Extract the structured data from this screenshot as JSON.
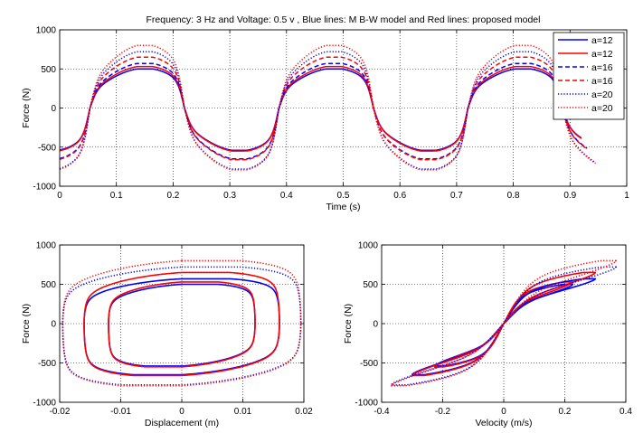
{
  "chart_data": [
    {
      "type": "line",
      "title": "Frequency: 3 Hz and Voltage: 0.5 v , Blue lines: M B-W model and Red lines: proposed model",
      "xlabel": "Time (s)",
      "ylabel": "Force (N)",
      "xlim": [
        0,
        1
      ],
      "ylim": [
        -1000,
        1000
      ],
      "xticks": [
        0,
        0.1,
        0.2,
        0.3,
        0.4,
        0.5,
        0.6,
        0.7,
        0.8,
        0.9,
        1
      ],
      "xtick_labels": [
        "0",
        "0.1",
        "0.2",
        "0.3",
        "0.4",
        "0.5",
        "0.6",
        "0.7",
        "0.8",
        "0.9",
        "1"
      ],
      "yticks": [
        -1000,
        -500,
        0,
        500,
        1000
      ],
      "ytick_labels": [
        "-1000",
        "-500",
        "0",
        "500",
        "1000"
      ],
      "grid": true,
      "legend_position": "top-right",
      "frequency_hz": 3,
      "series": [
        {
          "name": "a=12",
          "color": "#0000ff",
          "style": "solid",
          "peak_pos": 500,
          "peak_neg": -540,
          "x_end": 0.92
        },
        {
          "name": "a=12",
          "color": "#ff0000",
          "style": "solid",
          "peak_pos": 530,
          "peak_neg": -550,
          "x_end": 0.92
        },
        {
          "name": "a=16",
          "color": "#0000ff",
          "style": "dashed",
          "peak_pos": 570,
          "peak_neg": -650,
          "x_end": 0.93
        },
        {
          "name": "a=16",
          "color": "#ff0000",
          "style": "dashed",
          "peak_pos": 650,
          "peak_neg": -660,
          "x_end": 0.93
        },
        {
          "name": "a=20",
          "color": "#0000ff",
          "style": "dotted",
          "peak_pos": 720,
          "peak_neg": -780,
          "x_end": 0.945
        },
        {
          "name": "a=20",
          "color": "#ff0000",
          "style": "dotted",
          "peak_pos": 800,
          "peak_neg": -790,
          "x_end": 0.945
        }
      ]
    },
    {
      "type": "line",
      "xlabel": "Displacement (m)",
      "ylabel": "Force (N)",
      "xlim": [
        -0.02,
        0.02
      ],
      "ylim": [
        -1000,
        1000
      ],
      "xticks": [
        -0.02,
        -0.01,
        0,
        0.01,
        0.02
      ],
      "xtick_labels": [
        "-0.02",
        "-0.01",
        "0",
        "0.01",
        "0.02"
      ],
      "yticks": [
        -1000,
        -500,
        0,
        500,
        1000
      ],
      "ytick_labels": [
        "-1000",
        "-500",
        "0",
        "500",
        "1000"
      ],
      "grid": true,
      "loops": [
        {
          "amplitude": 0.012,
          "peak_pos": 500,
          "peak_neg": -540,
          "color": "#0000ff",
          "style": "solid"
        },
        {
          "amplitude": 0.012,
          "peak_pos": 530,
          "peak_neg": -550,
          "color": "#ff0000",
          "style": "solid"
        },
        {
          "amplitude": 0.016,
          "peak_pos": 570,
          "peak_neg": -650,
          "color": "#0000ff",
          "style": "solid"
        },
        {
          "amplitude": 0.016,
          "peak_pos": 650,
          "peak_neg": -660,
          "color": "#ff0000",
          "style": "solid"
        },
        {
          "amplitude": 0.0195,
          "peak_pos": 720,
          "peak_neg": -780,
          "color": "#0000ff",
          "style": "dotted"
        },
        {
          "amplitude": 0.0195,
          "peak_pos": 800,
          "peak_neg": -790,
          "color": "#ff0000",
          "style": "dotted"
        }
      ]
    },
    {
      "type": "line",
      "xlabel": "Velocity (m/s)",
      "ylabel": "Force (N)",
      "xlim": [
        -0.4,
        0.4
      ],
      "ylim": [
        -1000,
        1000
      ],
      "xticks": [
        -0.4,
        -0.2,
        0,
        0.2,
        0.4
      ],
      "xtick_labels": [
        "-0.4",
        "-0.2",
        "0",
        "0.2",
        "0.4"
      ],
      "yticks": [
        -1000,
        -500,
        0,
        500,
        1000
      ],
      "ytick_labels": [
        "-1000",
        "-500",
        "0",
        "500",
        "1000"
      ],
      "grid": true,
      "loops": [
        {
          "vmax": 0.226,
          "peak_pos": 500,
          "peak_neg": -540,
          "color": "#0000ff",
          "style": "solid"
        },
        {
          "vmax": 0.226,
          "peak_pos": 530,
          "peak_neg": -550,
          "color": "#ff0000",
          "style": "solid"
        },
        {
          "vmax": 0.3,
          "peak_pos": 570,
          "peak_neg": -650,
          "color": "#0000ff",
          "style": "solid"
        },
        {
          "vmax": 0.3,
          "peak_pos": 650,
          "peak_neg": -660,
          "color": "#ff0000",
          "style": "solid"
        },
        {
          "vmax": 0.368,
          "peak_pos": 720,
          "peak_neg": -780,
          "color": "#0000ff",
          "style": "dotted"
        },
        {
          "vmax": 0.368,
          "peak_pos": 800,
          "peak_neg": -790,
          "color": "#ff0000",
          "style": "dotted"
        }
      ]
    }
  ]
}
